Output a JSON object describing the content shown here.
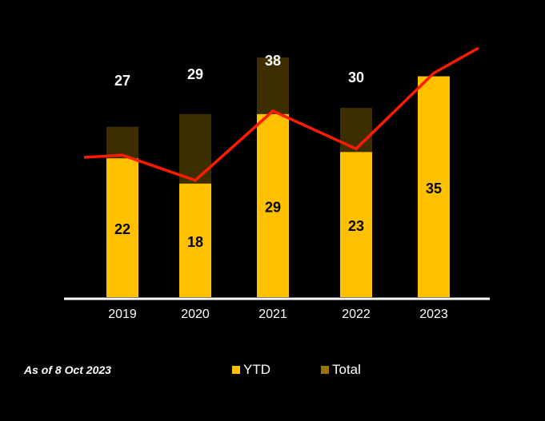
{
  "note": "As of 8 Oct 2023",
  "chart_data": {
    "type": "bar",
    "categories": [
      "2019",
      "2020",
      "2021",
      "2022",
      "2023"
    ],
    "series": [
      {
        "name": "YTD",
        "values": [
          22,
          18,
          29,
          23,
          35
        ],
        "color": "#FFC000"
      },
      {
        "name": "Total",
        "values": [
          27,
          29,
          38,
          30,
          null
        ],
        "color": "#3D2E00",
        "legend_color": "#9A7400"
      }
    ],
    "trend_line": {
      "color": "#FF1A00",
      "follows": "YTD"
    },
    "legend": "bottom",
    "grid": false,
    "ylim": [
      0,
      40
    ]
  }
}
